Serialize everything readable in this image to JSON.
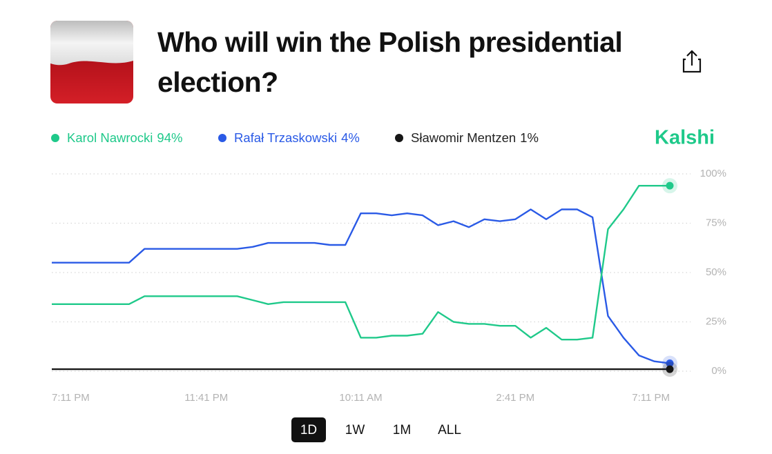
{
  "header": {
    "title": "Who will win the Polish presidential election?",
    "brand": "Kalshi"
  },
  "chart_data": {
    "type": "line",
    "xlim": [
      0,
      40
    ],
    "xticks": [
      {
        "value": 0,
        "label": "7:11 PM"
      },
      {
        "value": 10,
        "label": "11:41 PM"
      },
      {
        "value": 20,
        "label": "10:11 AM"
      },
      {
        "value": 30,
        "label": "2:41 PM"
      },
      {
        "value": 40,
        "label": "7:11 PM"
      }
    ],
    "ylim": [
      0,
      100
    ],
    "yticks": [
      {
        "value": 0,
        "label": "0%"
      },
      {
        "value": 25,
        "label": "25%"
      },
      {
        "value": 50,
        "label": "50%"
      },
      {
        "value": 75,
        "label": "75%"
      },
      {
        "value": 100,
        "label": "100%"
      }
    ],
    "grid": true,
    "series": [
      {
        "name": "Karol Nawrocki",
        "color": "#1fc98a",
        "current_label": "94%",
        "values": [
          34,
          34,
          34,
          34,
          34,
          34,
          38,
          38,
          38,
          38,
          38,
          38,
          38,
          36,
          34,
          35,
          35,
          35,
          35,
          35,
          17,
          17,
          18,
          18,
          19,
          30,
          25,
          24,
          24,
          23,
          23,
          17,
          22,
          16,
          16,
          17,
          72,
          82,
          94,
          94,
          94
        ]
      },
      {
        "name": "Rafał Trzaskowski",
        "color": "#2a5ae6",
        "current_label": "4%",
        "values": [
          55,
          55,
          55,
          55,
          55,
          55,
          62,
          62,
          62,
          62,
          62,
          62,
          62,
          63,
          65,
          65,
          65,
          65,
          64,
          64,
          80,
          80,
          79,
          80,
          79,
          74,
          76,
          73,
          77,
          76,
          77,
          82,
          77,
          82,
          82,
          78,
          28,
          17,
          8,
          5,
          4
        ]
      },
      {
        "name": "Sławomir Mentzen",
        "color": "#161616",
        "current_label": "1%",
        "values": [
          1,
          1,
          1,
          1,
          1,
          1,
          1,
          1,
          1,
          1,
          1,
          1,
          1,
          1,
          1,
          1,
          1,
          1,
          1,
          1,
          1,
          1,
          1,
          1,
          1,
          1,
          1,
          1,
          1,
          1,
          1,
          1,
          1,
          1,
          1,
          1,
          1,
          1,
          1,
          1,
          1
        ]
      }
    ]
  },
  "range_buttons": [
    "1D",
    "1W",
    "1M",
    "ALL"
  ],
  "selected_range": 0
}
